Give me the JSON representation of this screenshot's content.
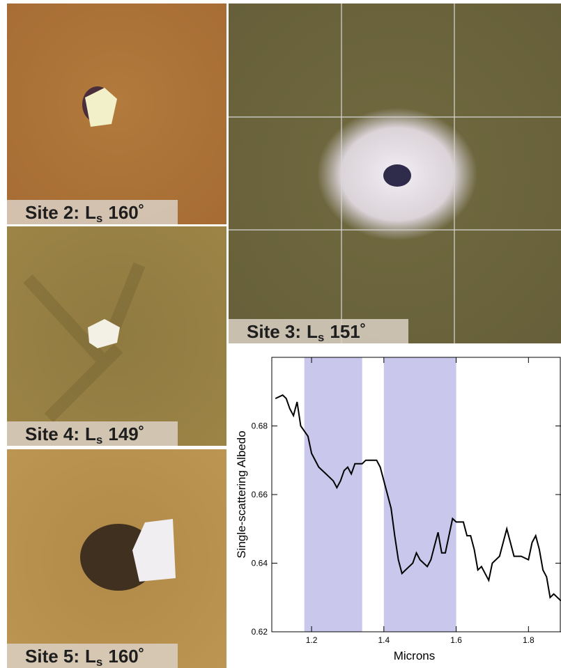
{
  "panels": [
    {
      "site": "Site 2:",
      "symbol": "L",
      "subscript": "s",
      "angle": "160˚"
    },
    {
      "site": "Site 4:",
      "symbol": "L",
      "subscript": "s",
      "angle": "149˚"
    },
    {
      "site": "Site 5:",
      "symbol": "L",
      "subscript": "s",
      "angle": "160˚"
    },
    {
      "site": "Site 3:",
      "symbol": "L",
      "subscript": "s",
      "angle": "151˚"
    }
  ],
  "chart_data": {
    "type": "line",
    "x_label": "Microns",
    "y_label": "Single-scattering Albedo",
    "xlim": [
      1.09,
      1.89
    ],
    "xticks": [
      1.2,
      1.4,
      1.6,
      1.8
    ],
    "ylim": [
      0.62,
      0.7
    ],
    "yticks": [
      0.62,
      0.64,
      0.66,
      0.68
    ],
    "bands": [
      [
        1.18,
        1.34
      ],
      [
        1.4,
        1.6
      ]
    ],
    "band_color": "#c9c8ec",
    "color": "#000000",
    "x": [
      1.1,
      1.12,
      1.13,
      1.14,
      1.15,
      1.16,
      1.17,
      1.19,
      1.2,
      1.22,
      1.24,
      1.26,
      1.27,
      1.28,
      1.29,
      1.3,
      1.31,
      1.32,
      1.34,
      1.35,
      1.36,
      1.38,
      1.39,
      1.4,
      1.42,
      1.43,
      1.44,
      1.45,
      1.46,
      1.48,
      1.49,
      1.5,
      1.52,
      1.53,
      1.54,
      1.55,
      1.56,
      1.57,
      1.58,
      1.59,
      1.6,
      1.62,
      1.63,
      1.64,
      1.65,
      1.66,
      1.67,
      1.68,
      1.69,
      1.7,
      1.72,
      1.73,
      1.74,
      1.75,
      1.76,
      1.78,
      1.8,
      1.81,
      1.82,
      1.83,
      1.84,
      1.85,
      1.86,
      1.87,
      1.88,
      1.89
    ],
    "values": [
      0.688,
      0.689,
      0.688,
      0.685,
      0.683,
      0.687,
      0.68,
      0.677,
      0.672,
      0.668,
      0.666,
      0.664,
      0.662,
      0.664,
      0.667,
      0.668,
      0.666,
      0.669,
      0.669,
      0.67,
      0.67,
      0.67,
      0.668,
      0.664,
      0.656,
      0.648,
      0.641,
      0.637,
      0.638,
      0.64,
      0.643,
      0.641,
      0.639,
      0.641,
      0.645,
      0.649,
      0.643,
      0.643,
      0.648,
      0.653,
      0.652,
      0.652,
      0.648,
      0.648,
      0.644,
      0.638,
      0.639,
      0.637,
      0.635,
      0.64,
      0.642,
      0.646,
      0.65,
      0.646,
      0.642,
      0.642,
      0.641,
      0.646,
      0.648,
      0.644,
      0.638,
      0.636,
      0.63,
      0.631,
      0.63,
      0.629
    ]
  }
}
